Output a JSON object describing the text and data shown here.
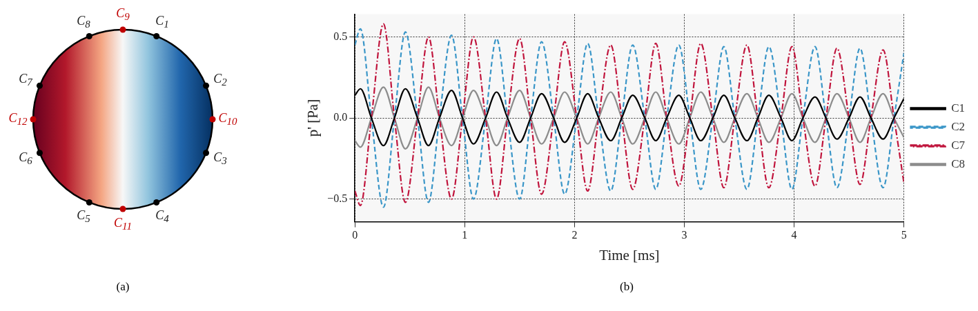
{
  "chart_data": [
    {
      "type": "other",
      "annotations": [
        "C$_{1}$",
        "C$_{2}$",
        "C$_{10}$",
        "C$_{3}$",
        "C$_{4}$",
        "C$_{11}$",
        "C$_{5}$",
        "C$_{6}$",
        "C$_{12}$",
        "C$_{7}$",
        "C$_{8}$",
        "C$_{9}$",
        "(a)"
      ]
    },
    {
      "type": "line",
      "xlabel": "Time [ms]",
      "ylabel": "p' [Pa]",
      "annotations": [
        "(b)"
      ],
      "x": [
        0,
        0.05,
        0.15,
        0.26,
        0.36,
        0.46,
        0.57,
        0.67,
        0.77,
        0.88,
        0.98,
        1.08,
        1.19,
        1.29,
        1.39,
        1.5,
        1.6,
        1.7,
        1.81,
        1.91,
        2.02,
        2.12,
        2.22,
        2.33,
        2.43,
        2.53,
        2.64,
        2.74,
        2.84,
        2.95,
        3.05,
        3.15,
        3.26,
        3.36,
        3.46,
        3.57,
        3.67,
        3.77,
        3.88,
        3.98,
        4.08,
        4.19,
        4.29,
        4.39,
        4.5,
        4.6,
        4.7,
        4.81,
        4.91,
        5.0
      ],
      "xlim": [
        0,
        5
      ],
      "xticks": [
        0,
        1,
        2,
        3,
        4,
        5
      ],
      "ylim": [
        -0.64,
        0.64
      ],
      "yticks": [
        {
          "value": -0.5,
          "label": "−0.5"
        },
        {
          "value": 0,
          "label": "0.0"
        },
        {
          "value": 0.5,
          "label": "0.5"
        }
      ],
      "grid": true,
      "legend": "right",
      "series": [
        {
          "name": "C1",
          "color": "#000000",
          "line_style": "solid",
          "values": [
            0.14,
            0.18,
            0,
            -0.17,
            0,
            0.18,
            0,
            -0.17,
            0,
            0.17,
            0,
            -0.16,
            0,
            0.16,
            0,
            -0.15,
            0,
            0.15,
            0,
            -0.15,
            0,
            0.15,
            0,
            -0.14,
            0,
            0.14,
            0,
            -0.14,
            0,
            0.14,
            0,
            -0.14,
            0,
            0.14,
            0,
            -0.14,
            0,
            0.14,
            0,
            -0.14,
            0,
            0.13,
            0,
            -0.13,
            0,
            0.13,
            0,
            -0.13,
            0,
            0.12
          ]
        },
        {
          "name": "C2",
          "color": "#3a96c8",
          "line_style": "dashed",
          "values": [
            0.45,
            0.55,
            0,
            -0.55,
            0,
            0.53,
            0,
            -0.52,
            0,
            0.51,
            0,
            -0.5,
            0,
            0.49,
            0,
            -0.5,
            0,
            0.47,
            0,
            -0.47,
            0,
            0.46,
            0,
            -0.45,
            0,
            0.45,
            0,
            -0.44,
            0,
            0.45,
            0,
            -0.44,
            0,
            0.44,
            0,
            -0.44,
            0,
            0.44,
            0,
            -0.44,
            0,
            0.44,
            0,
            -0.43,
            0,
            0.43,
            0,
            -0.43,
            0,
            0.4
          ]
        },
        {
          "name": "C7",
          "color": "#c0143c",
          "line_style": "dashdot",
          "values": [
            -0.45,
            -0.54,
            0,
            0.58,
            0,
            -0.52,
            0,
            0.5,
            0,
            -0.5,
            0,
            0.5,
            0,
            -0.5,
            0,
            0.49,
            0,
            -0.47,
            0,
            0.47,
            0,
            -0.45,
            0,
            0.45,
            0,
            -0.44,
            0,
            0.46,
            0,
            -0.42,
            0,
            0.46,
            0,
            -0.43,
            0,
            0.45,
            0,
            -0.43,
            0,
            0.44,
            0,
            -0.42,
            0,
            0.43,
            0,
            -0.41,
            0,
            0.42,
            0,
            -0.4
          ]
        },
        {
          "name": "C8",
          "color": "#8c8c8c",
          "line_style": "solid",
          "values": [
            -0.14,
            -0.18,
            0,
            0.19,
            0,
            -0.19,
            0,
            0.19,
            0,
            -0.17,
            0,
            0.17,
            0,
            -0.17,
            0,
            0.17,
            0,
            -0.16,
            0,
            0.16,
            0,
            -0.16,
            0,
            0.16,
            0,
            -0.16,
            0,
            0.16,
            0,
            -0.16,
            0,
            0.16,
            0,
            -0.15,
            0,
            0.15,
            0,
            -0.15,
            0,
            0.15,
            0,
            -0.15,
            0,
            0.15,
            0,
            -0.15,
            0,
            0.15,
            0,
            -0.12
          ]
        }
      ]
    }
  ]
}
